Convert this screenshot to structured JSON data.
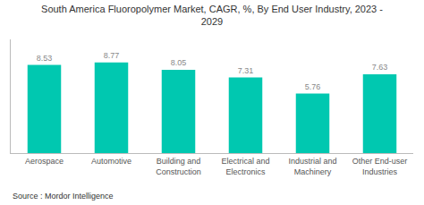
{
  "chart_data": {
    "type": "bar",
    "title": "South America Fluoropolymer Market, CAGR, %, By End User Industry, 2023 -\n2029",
    "categories": [
      "Aerospace",
      "Automotive",
      "Building and\nConstruction",
      "Electrical and\nElectronics",
      "Industrial and\nMachinery",
      "Other End-user\nIndustries"
    ],
    "values": [
      8.53,
      8.77,
      8.05,
      7.31,
      5.76,
      7.63
    ],
    "color": "#00C8B0",
    "ylim": [
      0,
      11.0
    ],
    "grid": false,
    "data_labels": true,
    "tick_labels": "x",
    "annotations": [
      "Source : Mordor Intelligence"
    ]
  }
}
